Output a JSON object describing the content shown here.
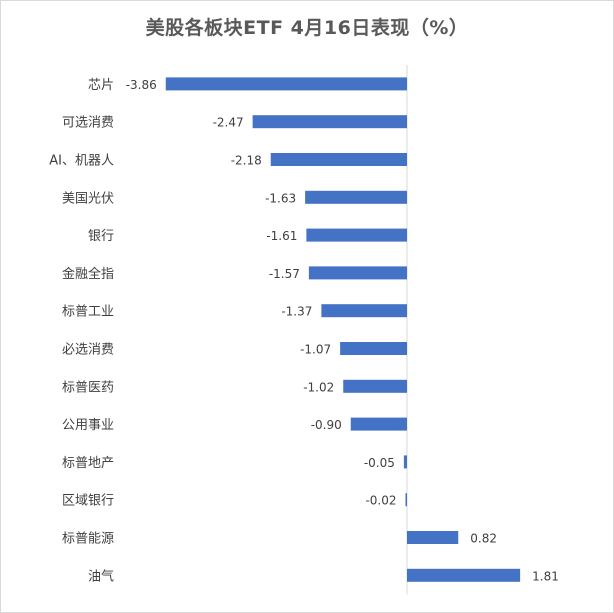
{
  "chart_data": {
    "type": "bar",
    "orientation": "horizontal",
    "title": "美股各板块ETF 4月16日表现（%）",
    "categories": [
      "芯片",
      "可选消费",
      "AI、机器人",
      "美国光伏",
      "银行",
      "金融全指",
      "标普工业",
      "必选消费",
      "标普医药",
      "公用事业",
      "标普地产",
      "区域银行",
      "标普能源",
      "油气"
    ],
    "values": [
      -3.86,
      -2.47,
      -2.18,
      -1.63,
      -1.61,
      -1.57,
      -1.37,
      -1.07,
      -1.02,
      -0.9,
      -0.05,
      -0.02,
      0.82,
      1.81
    ],
    "value_labels": [
      "-3.86",
      "-2.47",
      "-2.18",
      "-1.63",
      "-1.61",
      "-1.57",
      "-1.37",
      "-1.07",
      "-1.02",
      "-0.90",
      "-0.05",
      "-0.02",
      "0.82",
      "1.81"
    ],
    "xlim": [
      -4.0,
      2.0
    ],
    "grid": false,
    "legend": "none",
    "bar_color": "#4472C4"
  }
}
